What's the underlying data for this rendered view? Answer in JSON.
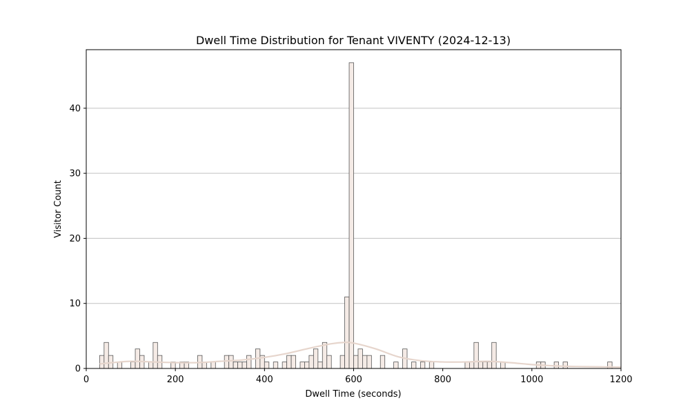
{
  "chart_data": {
    "type": "bar",
    "title": "Dwell Time Distribution for Tenant VIVENTY (2024-12-13)",
    "xlabel": "Dwell Time (seconds)",
    "ylabel": "Visitor Count",
    "xlim": [
      0,
      1200
    ],
    "ylim": [
      0,
      49
    ],
    "xticks": [
      0,
      200,
      400,
      600,
      800,
      1000,
      1200
    ],
    "yticks": [
      0,
      10,
      20,
      30,
      40
    ],
    "grid": "y",
    "bin_width": 10,
    "bins": [
      {
        "x": 30,
        "count": 2
      },
      {
        "x": 40,
        "count": 4
      },
      {
        "x": 50,
        "count": 2
      },
      {
        "x": 70,
        "count": 1
      },
      {
        "x": 100,
        "count": 1
      },
      {
        "x": 110,
        "count": 3
      },
      {
        "x": 120,
        "count": 2
      },
      {
        "x": 140,
        "count": 1
      },
      {
        "x": 150,
        "count": 4
      },
      {
        "x": 160,
        "count": 2
      },
      {
        "x": 190,
        "count": 1
      },
      {
        "x": 210,
        "count": 1
      },
      {
        "x": 220,
        "count": 1
      },
      {
        "x": 250,
        "count": 2
      },
      {
        "x": 260,
        "count": 1
      },
      {
        "x": 280,
        "count": 1
      },
      {
        "x": 310,
        "count": 2
      },
      {
        "x": 320,
        "count": 2
      },
      {
        "x": 330,
        "count": 1
      },
      {
        "x": 340,
        "count": 1
      },
      {
        "x": 350,
        "count": 1
      },
      {
        "x": 360,
        "count": 2
      },
      {
        "x": 380,
        "count": 3
      },
      {
        "x": 390,
        "count": 2
      },
      {
        "x": 400,
        "count": 1
      },
      {
        "x": 420,
        "count": 1
      },
      {
        "x": 440,
        "count": 1
      },
      {
        "x": 450,
        "count": 2
      },
      {
        "x": 460,
        "count": 2
      },
      {
        "x": 480,
        "count": 1
      },
      {
        "x": 490,
        "count": 1
      },
      {
        "x": 500,
        "count": 2
      },
      {
        "x": 510,
        "count": 3
      },
      {
        "x": 520,
        "count": 1
      },
      {
        "x": 530,
        "count": 4
      },
      {
        "x": 540,
        "count": 2
      },
      {
        "x": 570,
        "count": 2
      },
      {
        "x": 580,
        "count": 11
      },
      {
        "x": 590,
        "count": 47
      },
      {
        "x": 600,
        "count": 2
      },
      {
        "x": 610,
        "count": 3
      },
      {
        "x": 620,
        "count": 2
      },
      {
        "x": 630,
        "count": 2
      },
      {
        "x": 660,
        "count": 2
      },
      {
        "x": 690,
        "count": 1
      },
      {
        "x": 710,
        "count": 3
      },
      {
        "x": 730,
        "count": 1
      },
      {
        "x": 750,
        "count": 1
      },
      {
        "x": 770,
        "count": 1
      },
      {
        "x": 850,
        "count": 1
      },
      {
        "x": 860,
        "count": 1
      },
      {
        "x": 870,
        "count": 4
      },
      {
        "x": 880,
        "count": 1
      },
      {
        "x": 890,
        "count": 1
      },
      {
        "x": 900,
        "count": 1
      },
      {
        "x": 910,
        "count": 4
      },
      {
        "x": 930,
        "count": 1
      },
      {
        "x": 1010,
        "count": 1
      },
      {
        "x": 1020,
        "count": 1
      },
      {
        "x": 1050,
        "count": 1
      },
      {
        "x": 1070,
        "count": 1
      },
      {
        "x": 1170,
        "count": 1
      }
    ],
    "kde_curve": {
      "x": [
        30,
        60,
        100,
        150,
        200,
        250,
        300,
        350,
        400,
        450,
        500,
        550,
        580,
        600,
        650,
        700,
        750,
        800,
        850,
        900,
        950,
        1000,
        1050,
        1100,
        1150,
        1200
      ],
      "y": [
        0.7,
        0.9,
        1.1,
        1.0,
        0.9,
        0.9,
        1.1,
        1.3,
        1.7,
        2.3,
        3.1,
        3.8,
        4.0,
        3.9,
        3.0,
        1.8,
        1.2,
        1.0,
        1.0,
        1.1,
        0.9,
        0.6,
        0.4,
        0.3,
        0.25,
        0.2
      ]
    }
  }
}
